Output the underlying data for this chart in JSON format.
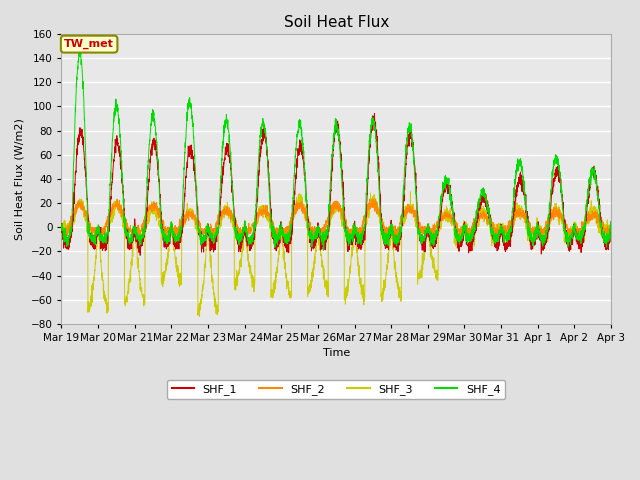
{
  "title": "Soil Heat Flux",
  "ylabel": "Soil Heat Flux (W/m2)",
  "xlabel": "Time",
  "ylim": [
    -80,
    160
  ],
  "yticks": [
    -80,
    -60,
    -40,
    -20,
    0,
    20,
    40,
    60,
    80,
    100,
    120,
    140,
    160
  ],
  "fig_bg_color": "#e0e0e0",
  "plot_bg_color": "#e8e8e8",
  "grid_color": "#ffffff",
  "series": [
    "SHF_1",
    "SHF_2",
    "SHF_3",
    "SHF_4"
  ],
  "colors": [
    "#cc0000",
    "#ff8800",
    "#cccc00",
    "#00dd00"
  ],
  "annotation_text": "TW_met",
  "annotation_bg": "#ffffcc",
  "annotation_border": "#888800",
  "annotation_text_color": "#cc0000",
  "n_points": 3360
}
